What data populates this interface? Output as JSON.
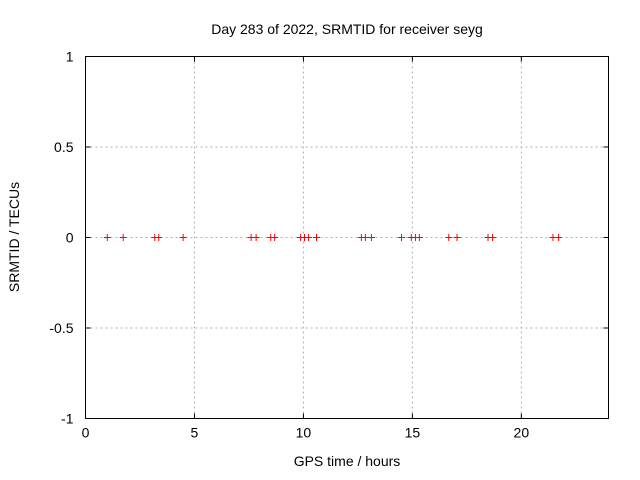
{
  "chart_data": {
    "type": "scatter",
    "title": "Day 283 of 2022, SRMTID for receiver seyg",
    "xlabel": "GPS time / hours",
    "ylabel": "SRMTID / TECUs",
    "xlim": [
      0,
      24
    ],
    "ylim": [
      -1,
      1
    ],
    "x_tick_values": [
      0,
      5,
      10,
      15,
      20
    ],
    "x_tick_labels": [
      "0",
      "5",
      "10",
      "15",
      "20"
    ],
    "y_tick_values": [
      -1,
      -0.5,
      0,
      0.5,
      1
    ],
    "y_tick_labels": [
      "-1",
      "-0.5",
      "0",
      "0.5",
      "1"
    ],
    "grid": true,
    "legend": "none",
    "marker": {
      "shape": "plus",
      "size": 7,
      "color": "#ff0000"
    },
    "series": [
      {
        "name": "SRMTID",
        "x": [
          1.0,
          1.73,
          3.18,
          3.36,
          4.48,
          7.6,
          7.83,
          8.5,
          8.68,
          9.87,
          10.05,
          10.23,
          10.6,
          12.66,
          12.84,
          13.12,
          14.5,
          14.95,
          15.14,
          15.32,
          16.67,
          17.05,
          18.47,
          18.68,
          21.45,
          21.71
        ],
        "y": [
          0,
          0,
          0,
          0,
          0,
          0,
          0,
          0,
          0,
          0,
          0,
          0,
          0,
          0,
          0,
          0,
          0,
          0,
          0,
          0,
          0,
          0,
          0,
          0,
          0,
          0
        ]
      }
    ]
  },
  "colors": {
    "background": "#ffffff",
    "axis": "#000000",
    "grid": "#b0b0b0",
    "text": "#000000",
    "marker": "#ff0000"
  }
}
